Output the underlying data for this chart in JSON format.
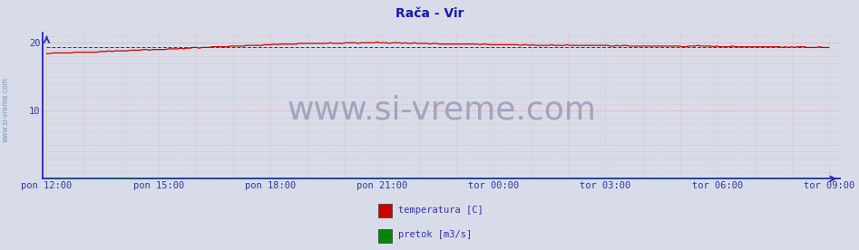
{
  "title": "Rača - Vir",
  "title_color": "#1a1aaa",
  "title_fontsize": 10,
  "background_color": "#d8dce8",
  "plot_bg_color": "#d8dce8",
  "yticks": [
    10,
    20
  ],
  "ylim": [
    0,
    21.5
  ],
  "n_hours": 21,
  "xtick_labels": [
    "pon 12:00",
    "pon 15:00",
    "pon 18:00",
    "pon 21:00",
    "tor 00:00",
    "tor 03:00",
    "tor 06:00",
    "tor 09:00"
  ],
  "xtick_positions": [
    0,
    3,
    6,
    9,
    12,
    15,
    18,
    21
  ],
  "h_grid_color": "#ee9999",
  "v_grid_color": "#ddaaaa",
  "temp_color": "#cc0000",
  "flow_color": "#008800",
  "avg_temp_value": 19.35,
  "avg_flow_value": 0.04,
  "watermark": "www.si-vreme.com",
  "watermark_color": "#9999bb",
  "watermark_fontsize": 26,
  "legend_items": [
    "temperatura [C]",
    "pretok [m3/s]"
  ],
  "legend_colors": [
    "#cc0000",
    "#008800"
  ],
  "axis_color": "#2222bb",
  "tick_label_color": "#3333aa",
  "tick_label_fontsize": 7.5,
  "sidewater_text": "www.si-vreme.com",
  "sidewater_color": "#7799bb",
  "sidewater_fontsize": 5.5,
  "temp_start": 18.5,
  "temp_peak": 20.0,
  "temp_peak_hour": 7,
  "temp_end": 18.9
}
